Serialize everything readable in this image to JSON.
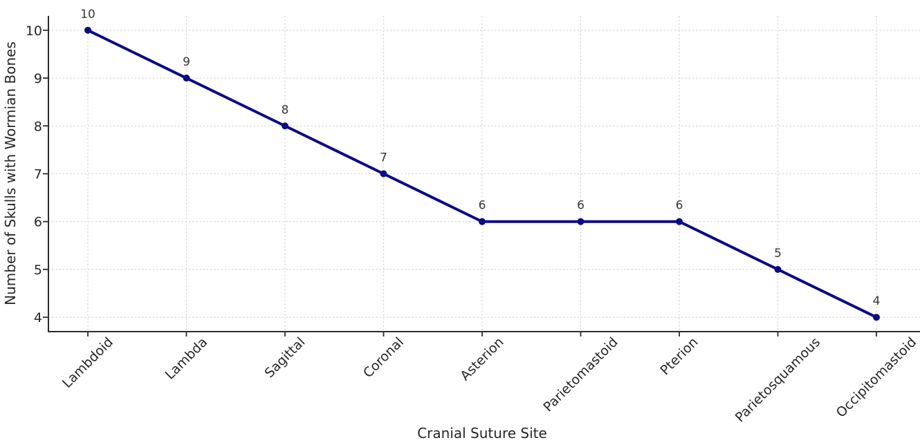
{
  "chart_data": {
    "type": "line",
    "title": "",
    "xlabel": "Cranial Suture Site",
    "ylabel": "Number of Skulls with Wormian Bones",
    "categories": [
      "Lambdoid",
      "Lambda",
      "Sagittal",
      "Coronal",
      "Asterion",
      "Parietomastoid",
      "Pterion",
      "Parietosquamous",
      "Occipitomastoid"
    ],
    "values": [
      10,
      9,
      8,
      7,
      6,
      6,
      6,
      5,
      4
    ],
    "yticks": [
      4,
      5,
      6,
      7,
      8,
      9,
      10
    ],
    "ylim": [
      3.7,
      10.3
    ],
    "grid": "both-dashed",
    "legend": "none",
    "marker": "circle",
    "colors": {
      "line": "#0a0a87",
      "marker": "#0a0a87",
      "grid": "#d9d9d9",
      "axis": "#2b2b2b",
      "tick_label": "#262626",
      "data_label": "#383838",
      "background": "#ffffff"
    }
  }
}
